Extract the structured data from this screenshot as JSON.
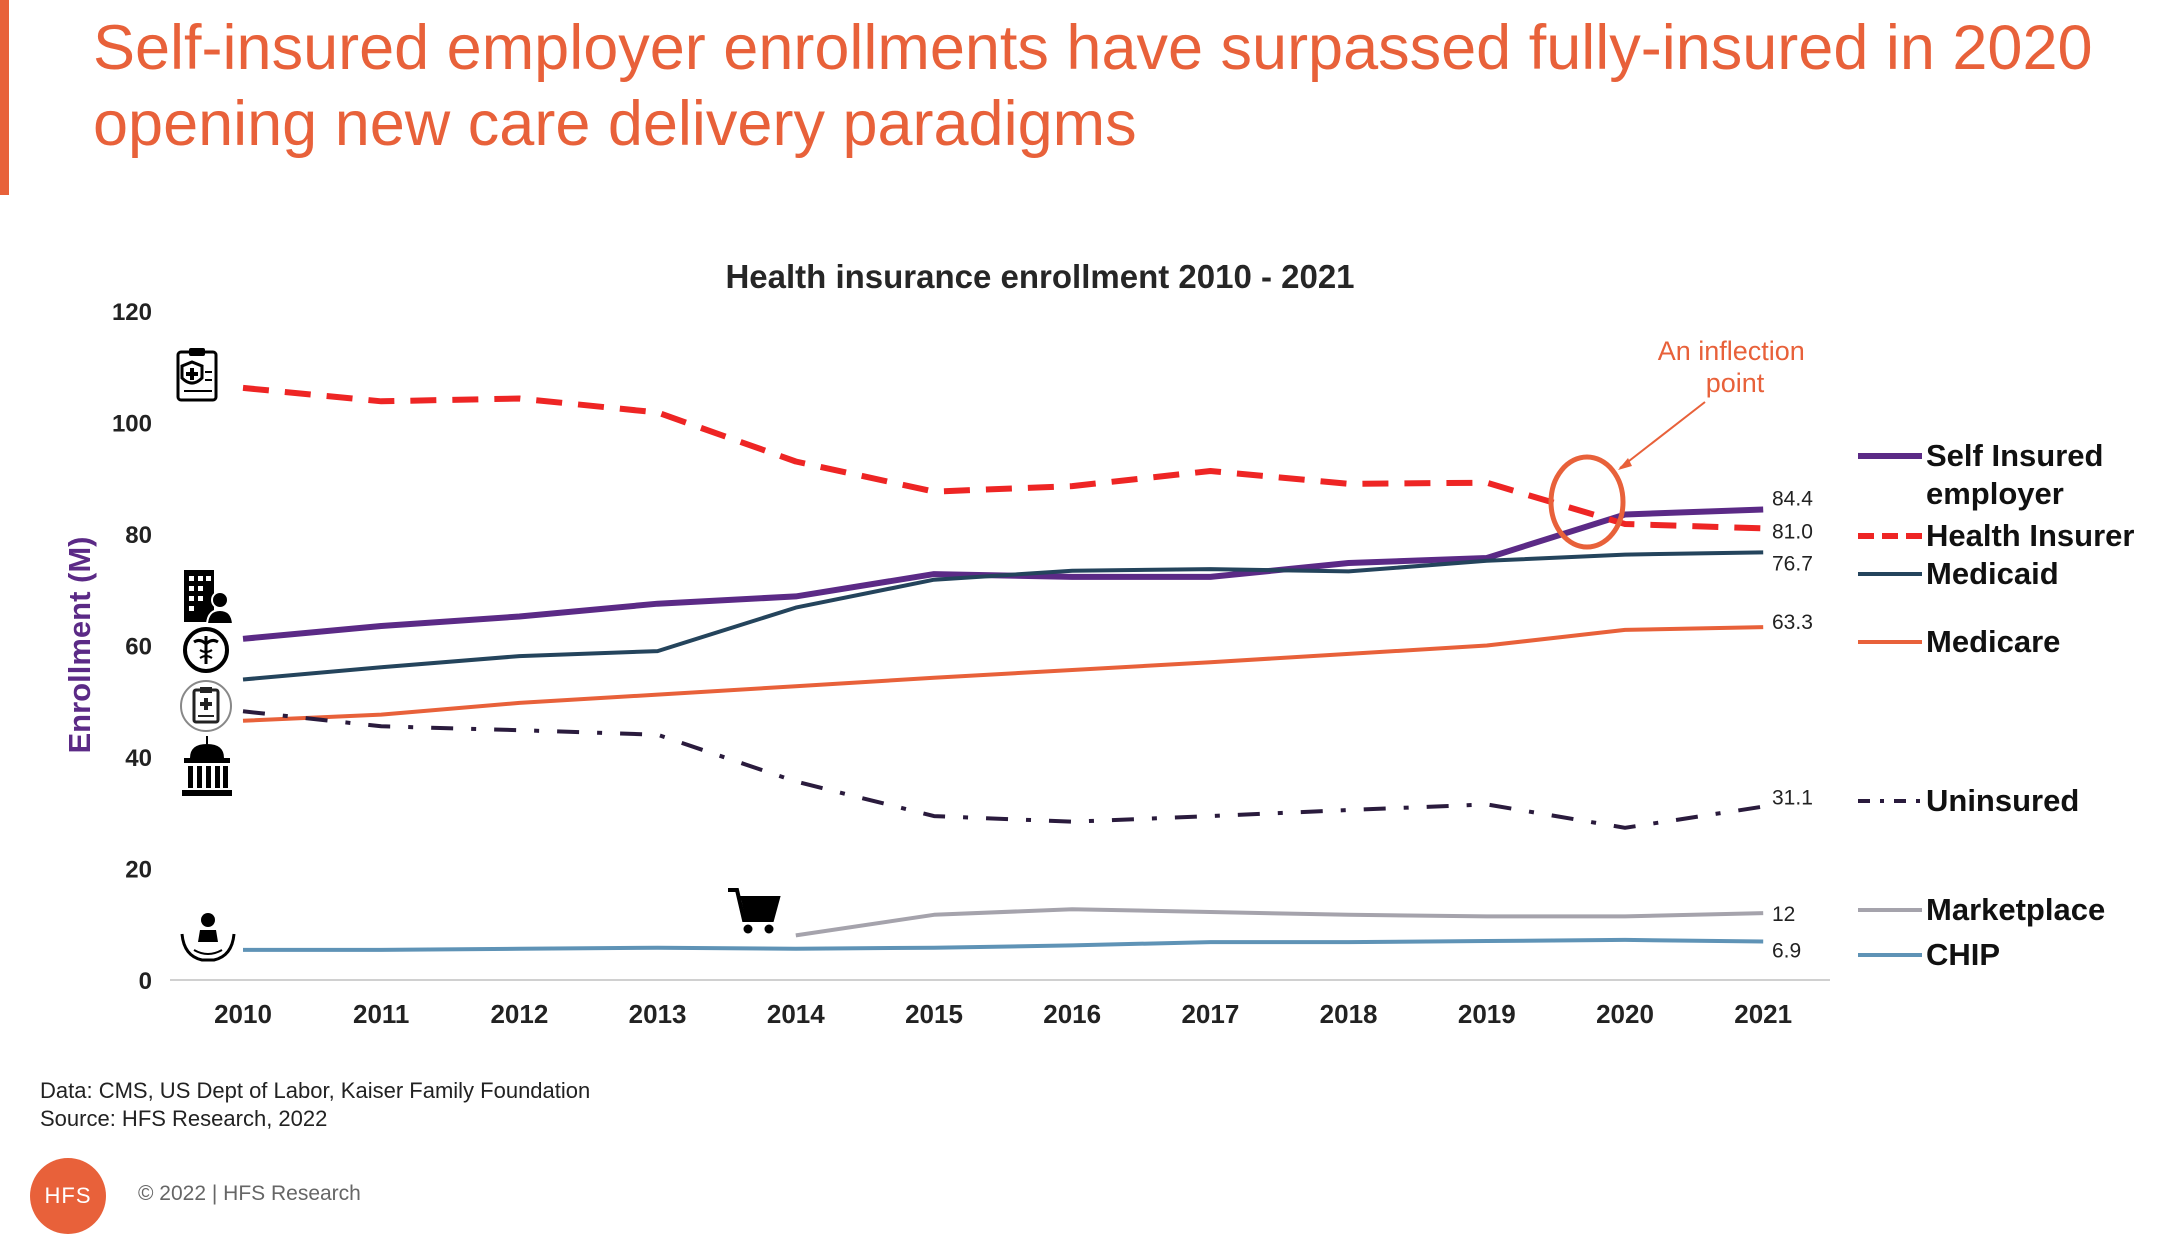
{
  "slide": {
    "title": "Self-insured employer enrollments have surpassed fully-insured in 2020 opening new care delivery paradigms",
    "data_note": "Data: CMS, US Dept of Labor, Kaiser Family Foundation",
    "source_note": "Source: HFS Research, 2022",
    "logo_text": "HFS",
    "copyright": "© 2022 | HFS Research",
    "accent_color": "#E8613A"
  },
  "chart_data": {
    "type": "line",
    "title": "Health insurance enrollment 2010 - 2021",
    "ylabel": "Enrollment (M)",
    "xlabel": "",
    "ylim": [
      0,
      120
    ],
    "yticks": [
      0,
      20,
      40,
      60,
      80,
      100,
      120
    ],
    "categories": [
      "2010",
      "2011",
      "2012",
      "2013",
      "2014",
      "2015",
      "2016",
      "2017",
      "2018",
      "2019",
      "2020",
      "2021"
    ],
    "grid": false,
    "legend_position": "right",
    "annotation": "An inflection point",
    "series": [
      {
        "name": "Self Insured employer",
        "color": "#5B2A86",
        "style": "solid",
        "icon": "insurance-document-icon",
        "values": [
          61.2,
          63.5,
          65.2,
          67.5,
          68.8,
          72.8,
          72.3,
          72.3,
          74.8,
          75.7,
          83.5,
          84.4
        ],
        "end_label": "84.4"
      },
      {
        "name": "Health Insurer",
        "color": "#EE2524",
        "style": "dashed",
        "icon": "hospital-doctor-icon",
        "values": [
          106.2,
          103.8,
          104.3,
          101.8,
          93.0,
          87.6,
          88.6,
          91.3,
          89.0,
          89.2,
          81.8,
          81.0
        ],
        "end_label": "81.0"
      },
      {
        "name": "Medicaid",
        "color": "#24445C",
        "style": "solid",
        "icon": "caduceus-icon",
        "values": [
          53.9,
          56.1,
          58.1,
          59.0,
          66.8,
          71.8,
          73.4,
          73.7,
          73.3,
          75.2,
          76.3,
          76.7
        ],
        "end_label": "76.7"
      },
      {
        "name": "Medicare",
        "color": "#E8613A",
        "style": "solid",
        "icon": "medical-clipboard-icon",
        "values": [
          46.5,
          47.6,
          49.7,
          51.2,
          52.7,
          54.2,
          55.6,
          57.0,
          58.5,
          60.0,
          62.8,
          63.3
        ],
        "end_label": "63.3"
      },
      {
        "name": "Uninsured",
        "color": "#2A1B3D",
        "style": "dash-dot",
        "icon": "government-building-icon",
        "values": [
          48.2,
          45.5,
          44.8,
          44.0,
          35.6,
          29.4,
          28.4,
          29.4,
          30.5,
          31.5,
          27.3,
          31.1
        ],
        "end_label": "31.1"
      },
      {
        "name": "Marketplace",
        "color": "#A5A3AC",
        "style": "solid",
        "icon": "shopping-cart-icon",
        "values": [
          null,
          null,
          null,
          null,
          8.0,
          11.7,
          12.7,
          12.2,
          11.7,
          11.4,
          11.4,
          12.0
        ],
        "end_label": "12"
      },
      {
        "name": "CHIP",
        "color": "#5F93B6",
        "style": "solid",
        "icon": "child-care-hands-icon",
        "values": [
          5.4,
          5.4,
          5.6,
          5.8,
          5.6,
          5.8,
          6.2,
          6.8,
          6.8,
          7.0,
          7.2,
          6.9
        ],
        "end_label": "6.9"
      }
    ]
  }
}
